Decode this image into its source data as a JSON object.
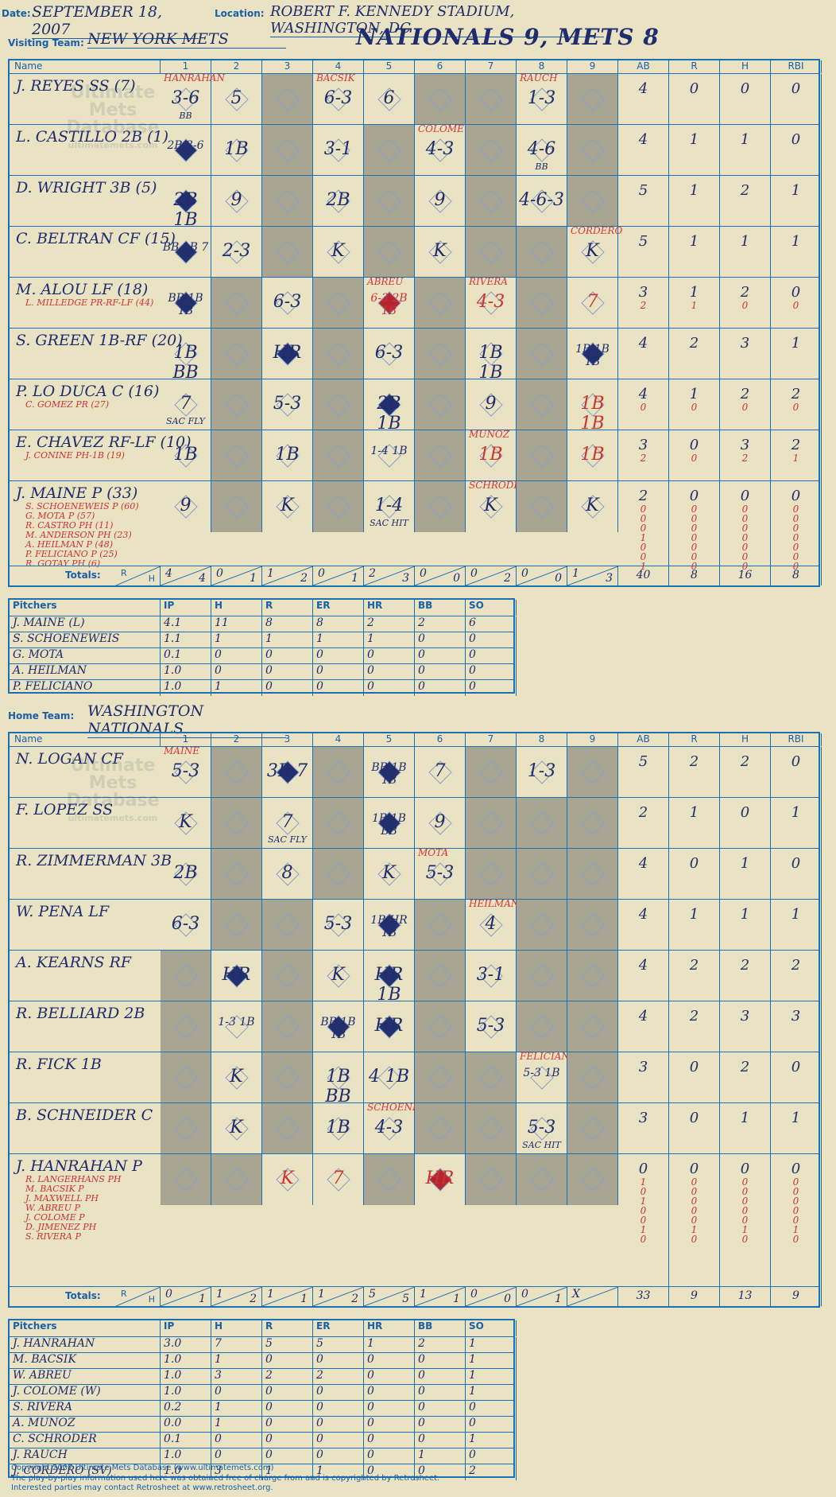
{
  "header": {
    "date_label": "Date:",
    "date": "SEPTEMBER 18, 2007",
    "location_label": "Location:",
    "location": "ROBERT F. KENNEDY STADIUM, WASHINGTON, DC",
    "visiting_label": "Visiting Team:",
    "visiting_team": "NEW YORK METS",
    "home_label": "Home Team:",
    "home_team": "WASHINGTON NATIONALS",
    "headline": "NATIONALS 9, METS 8",
    "watermark_lines": [
      "Ultimate",
      "Mets",
      "Database",
      "ultimatemets.com"
    ]
  },
  "columns": {
    "name": "Name",
    "innings": [
      "1",
      "2",
      "3",
      "4",
      "5",
      "6",
      "7",
      "8",
      "9"
    ],
    "stats": [
      "AB",
      "R",
      "H",
      "RBI"
    ],
    "totals_label": "Totals:",
    "r_label": "R",
    "h_label": "H"
  },
  "visitor": {
    "rows": [
      {
        "name": "J. REYES SS (7)",
        "subs": [],
        "ab": [
          "4"
        ],
        "r": [
          "0"
        ],
        "h": [
          "0"
        ],
        "rbi": [
          "0"
        ],
        "cells": [
          {
            "i": 1,
            "t": "3-6",
            "sub": "BB",
            "pitcher": "HANRAHAN"
          },
          {
            "i": 2,
            "t": "5"
          },
          {
            "i": 4,
            "t": "6-3",
            "pitcher": "BACSIK"
          },
          {
            "i": 5,
            "t": "6"
          },
          {
            "i": 8,
            "t": "1-3",
            "pitcher": "RAUCH"
          }
        ]
      },
      {
        "name": "L. CASTILLO 2B (1)",
        "subs": [],
        "ab": [
          "4"
        ],
        "r": [
          "1"
        ],
        "h": [
          "1"
        ],
        "rbi": [
          "0"
        ],
        "cells": [
          {
            "i": 1,
            "t": "2B 3-6",
            "run": true
          },
          {
            "i": 2,
            "t": "1B"
          },
          {
            "i": 4,
            "t": "3-1"
          },
          {
            "i": 6,
            "t": "4-3",
            "pitcher": "COLOME"
          },
          {
            "i": 8,
            "t": "4-6",
            "sub": "BB"
          }
        ]
      },
      {
        "name": "D. WRIGHT 3B (5)",
        "subs": [],
        "ab": [
          "5"
        ],
        "r": [
          "1"
        ],
        "h": [
          "2"
        ],
        "rbi": [
          "1"
        ],
        "cells": [
          {
            "i": 1,
            "t": "2B 1B",
            "run": true
          },
          {
            "i": 2,
            "t": "9"
          },
          {
            "i": 4,
            "t": "2B"
          },
          {
            "i": 6,
            "t": "9"
          },
          {
            "i": 8,
            "t": "4-6-3"
          }
        ]
      },
      {
        "name": "C. BELTRAN CF (15)",
        "subs": [],
        "ab": [
          "5"
        ],
        "r": [
          "1"
        ],
        "h": [
          "1"
        ],
        "rbi": [
          "1"
        ],
        "cells": [
          {
            "i": 1,
            "t": "BB 1B 7",
            "run": true
          },
          {
            "i": 2,
            "t": "2-3"
          },
          {
            "i": 4,
            "t": "K"
          },
          {
            "i": 6,
            "t": "K"
          },
          {
            "i": 9,
            "t": "K",
            "pitcher": "CORDERO"
          }
        ]
      },
      {
        "name": "M. ALOU LF (18)",
        "subs": [
          "L. MILLEDGE PR-RF-LF (44)"
        ],
        "ab": [
          "3",
          "2"
        ],
        "r": [
          "1",
          "1"
        ],
        "h": [
          "2",
          "0"
        ],
        "rbi": [
          "0",
          "0"
        ],
        "cells": [
          {
            "i": 1,
            "t": "BB 1B 1B",
            "run": true
          },
          {
            "i": 3,
            "t": "6-3"
          },
          {
            "i": 5,
            "t": "6-3 2B 1B",
            "run": true,
            "red": true,
            "pitcher": "ABREU"
          },
          {
            "i": 7,
            "t": "4-3",
            "red": true,
            "pitcher": "RIVERA"
          },
          {
            "i": 9,
            "t": "7",
            "red": true
          }
        ]
      },
      {
        "name": "S. GREEN 1B-RF (20)",
        "subs": [],
        "ab": [
          "4"
        ],
        "r": [
          "2"
        ],
        "h": [
          "3"
        ],
        "rbi": [
          "1"
        ],
        "cells": [
          {
            "i": 1,
            "t": "1B BB"
          },
          {
            "i": 3,
            "t": "HR",
            "run": true
          },
          {
            "i": 5,
            "t": "6-3"
          },
          {
            "i": 7,
            "t": "1B 1B"
          },
          {
            "i": 9,
            "t": "1B 1B 1B",
            "run": true
          }
        ]
      },
      {
        "name": "P. LO DUCA C (16)",
        "subs": [
          "C. GOMEZ PR (27)"
        ],
        "ab": [
          "4",
          "0"
        ],
        "r": [
          "1",
          "0"
        ],
        "h": [
          "2",
          "0"
        ],
        "rbi": [
          "2",
          "0"
        ],
        "cells": [
          {
            "i": 1,
            "t": "7",
            "sub": "SAC FLY"
          },
          {
            "i": 3,
            "t": "5-3"
          },
          {
            "i": 5,
            "t": "2B 1B",
            "run": true
          },
          {
            "i": 7,
            "t": "9"
          },
          {
            "i": 9,
            "t": "1B 1B",
            "red": true
          }
        ]
      },
      {
        "name": "E. CHAVEZ RF-LF (10)",
        "subs": [
          "J. CONINE PH-1B (19)"
        ],
        "ab": [
          "3",
          "2"
        ],
        "r": [
          "0",
          "0"
        ],
        "h": [
          "3",
          "2"
        ],
        "rbi": [
          "2",
          "1"
        ],
        "cells": [
          {
            "i": 1,
            "t": "1B"
          },
          {
            "i": 3,
            "t": "1B"
          },
          {
            "i": 5,
            "t": "1-4 1B"
          },
          {
            "i": 7,
            "t": "1B",
            "red": true,
            "pitcher": "MUNOZ"
          },
          {
            "i": 9,
            "t": "1B",
            "red": true
          }
        ]
      },
      {
        "name": "J. MAINE P (33)",
        "subs": [
          "S. SCHOENEWEIS P (60)",
          "G. MOTA P (57)",
          "R. CASTRO PH (11)",
          "M. ANDERSON PH (23)",
          "A. HEILMAN P (48)",
          "P. FELICIANO P (25)",
          "R. GOTAY PH (6)"
        ],
        "ab": [
          "2",
          "0",
          "0",
          "0",
          "1",
          "0",
          "0",
          "1"
        ],
        "r": [
          "0",
          "0",
          "0",
          "0",
          "0",
          "0",
          "0",
          "0"
        ],
        "h": [
          "0",
          "0",
          "0",
          "0",
          "0",
          "0",
          "0",
          "0"
        ],
        "rbi": [
          "0",
          "0",
          "0",
          "0",
          "0",
          "0",
          "0",
          "0"
        ],
        "cells": [
          {
            "i": 1,
            "t": "9"
          },
          {
            "i": 3,
            "t": "K"
          },
          {
            "i": 5,
            "t": "1-4",
            "sub": "SAC HIT"
          },
          {
            "i": 7,
            "t": "K",
            "pitcher": "SCHRODER"
          },
          {
            "i": 9,
            "t": "K"
          }
        ]
      }
    ],
    "innings_totals": [
      [
        "4",
        "4"
      ],
      [
        "0",
        "1"
      ],
      [
        "1",
        "2"
      ],
      [
        "0",
        "1"
      ],
      [
        "2",
        "3"
      ],
      [
        "0",
        "0"
      ],
      [
        "0",
        "2"
      ],
      [
        "0",
        "0"
      ],
      [
        "1",
        "3"
      ]
    ],
    "totals": [
      "40",
      "8",
      "16",
      "8"
    ]
  },
  "visitor_pitching": {
    "header": [
      "Pitchers",
      "IP",
      "H",
      "R",
      "ER",
      "HR",
      "BB",
      "SO"
    ],
    "rows": [
      [
        "J. MAINE (L)",
        "4.1",
        "11",
        "8",
        "8",
        "2",
        "2",
        "6"
      ],
      [
        "S. SCHOENEWEIS",
        "1.1",
        "1",
        "1",
        "1",
        "1",
        "0",
        "0"
      ],
      [
        "G. MOTA",
        "0.1",
        "0",
        "0",
        "0",
        "0",
        "0",
        "0"
      ],
      [
        "A. HEILMAN",
        "1.0",
        "0",
        "0",
        "0",
        "0",
        "0",
        "0"
      ],
      [
        "P. FELICIANO",
        "1.0",
        "1",
        "0",
        "0",
        "0",
        "0",
        "0"
      ]
    ]
  },
  "home": {
    "rows": [
      {
        "name": "N. LOGAN CF",
        "subs": [],
        "ab": [
          "5"
        ],
        "r": [
          "2"
        ],
        "h": [
          "2"
        ],
        "rbi": [
          "0"
        ],
        "cells": [
          {
            "i": 1,
            "t": "5-3",
            "pitcher": "MAINE"
          },
          {
            "i": 3,
            "t": "3B 7",
            "run": true
          },
          {
            "i": 5,
            "t": "BB 1B 1B",
            "run": true
          },
          {
            "i": 6,
            "t": "7"
          },
          {
            "i": 8,
            "t": "1-3"
          }
        ]
      },
      {
        "name": "F. LOPEZ SS",
        "subs": [],
        "ab": [
          "2"
        ],
        "r": [
          "1"
        ],
        "h": [
          "0"
        ],
        "rbi": [
          "1"
        ],
        "cells": [
          {
            "i": 1,
            "t": "K"
          },
          {
            "i": 3,
            "t": "7",
            "sub": "SAC FLY"
          },
          {
            "i": 5,
            "t": "1B 1B BB",
            "run": true
          },
          {
            "i": 6,
            "t": "9"
          }
        ]
      },
      {
        "name": "R. ZIMMERMAN 3B",
        "subs": [],
        "ab": [
          "4"
        ],
        "r": [
          "0"
        ],
        "h": [
          "1"
        ],
        "rbi": [
          "0"
        ],
        "cells": [
          {
            "i": 1,
            "t": "2B"
          },
          {
            "i": 3,
            "t": "8"
          },
          {
            "i": 5,
            "t": "K"
          },
          {
            "i": 6,
            "t": "5-3",
            "pitcher": "MOTA"
          }
        ]
      },
      {
        "name": "W. PENA LF",
        "subs": [],
        "ab": [
          "4"
        ],
        "r": [
          "1"
        ],
        "h": [
          "1"
        ],
        "rbi": [
          "1"
        ],
        "cells": [
          {
            "i": 1,
            "t": "6-3"
          },
          {
            "i": 4,
            "t": "5-3"
          },
          {
            "i": 5,
            "t": "1B HR 1B",
            "run": true
          },
          {
            "i": 7,
            "t": "4",
            "pitcher": "HEILMAN"
          }
        ]
      },
      {
        "name": "A. KEARNS RF",
        "subs": [],
        "ab": [
          "4"
        ],
        "r": [
          "2"
        ],
        "h": [
          "2"
        ],
        "rbi": [
          "2"
        ],
        "cells": [
          {
            "i": 2,
            "t": "HR",
            "run": true
          },
          {
            "i": 4,
            "t": "K"
          },
          {
            "i": 5,
            "t": "HR 1B",
            "run": true
          },
          {
            "i": 7,
            "t": "3-1"
          }
        ]
      },
      {
        "name": "R. BELLIARD 2B",
        "subs": [],
        "ab": [
          "4"
        ],
        "r": [
          "2"
        ],
        "h": [
          "3"
        ],
        "rbi": [
          "3"
        ],
        "cells": [
          {
            "i": 2,
            "t": "1-3 1B"
          },
          {
            "i": 4,
            "t": "BB 1B 1B",
            "run": true
          },
          {
            "i": 5,
            "t": "HR",
            "run": true
          },
          {
            "i": 7,
            "t": "5-3"
          }
        ]
      },
      {
        "name": "R. FICK 1B",
        "subs": [],
        "ab": [
          "3"
        ],
        "r": [
          "0"
        ],
        "h": [
          "2"
        ],
        "rbi": [
          "0"
        ],
        "cells": [
          {
            "i": 2,
            "t": "K"
          },
          {
            "i": 4,
            "t": "1B BB"
          },
          {
            "i": 5,
            "t": "4 1B"
          },
          {
            "i": 8,
            "t": "5-3 1B",
            "pitcher": "FELICIANO"
          }
        ]
      },
      {
        "name": "B. SCHNEIDER C",
        "subs": [],
        "ab": [
          "3"
        ],
        "r": [
          "0"
        ],
        "h": [
          "1"
        ],
        "rbi": [
          "1"
        ],
        "cells": [
          {
            "i": 2,
            "t": "K"
          },
          {
            "i": 4,
            "t": "1B"
          },
          {
            "i": 5,
            "t": "4-3",
            "pitcher": "SCHOENEWEIS"
          },
          {
            "i": 8,
            "t": "5-3",
            "sub": "SAC HIT"
          }
        ]
      },
      {
        "name": "J. HANRAHAN P",
        "subs": [
          "R. LANGERHANS PH",
          "M. BACSIK P",
          "J. MAXWELL PH",
          "W. ABREU P",
          "J. COLOME P",
          "D. JIMENEZ PH",
          "S. RIVERA P"
        ],
        "ab": [
          "0",
          "1",
          "0",
          "1",
          "0",
          "0",
          "1",
          "0"
        ],
        "r": [
          "0",
          "0",
          "0",
          "0",
          "0",
          "0",
          "1",
          "0"
        ],
        "h": [
          "0",
          "0",
          "0",
          "0",
          "0",
          "0",
          "1",
          "0"
        ],
        "rbi": [
          "0",
          "0",
          "0",
          "0",
          "0",
          "0",
          "1",
          "0"
        ],
        "cells": [
          {
            "i": 3,
            "t": "K",
            "red": true
          },
          {
            "i": 4,
            "t": "7",
            "red": true
          },
          {
            "i": 6,
            "t": "HR",
            "run": true,
            "red": true
          }
        ]
      }
    ],
    "innings_totals": [
      [
        "0",
        "1"
      ],
      [
        "1",
        "2"
      ],
      [
        "1",
        "1"
      ],
      [
        "1",
        "2"
      ],
      [
        "5",
        "5"
      ],
      [
        "1",
        "1"
      ],
      [
        "0",
        "0"
      ],
      [
        "0",
        "1"
      ],
      [
        "X",
        ""
      ]
    ],
    "totals": [
      "33",
      "9",
      "13",
      "9"
    ]
  },
  "home_pitching": {
    "header": [
      "Pitchers",
      "IP",
      "H",
      "R",
      "ER",
      "HR",
      "BB",
      "SO"
    ],
    "rows": [
      [
        "J. HANRAHAN",
        "3.0",
        "7",
        "5",
        "5",
        "1",
        "2",
        "1"
      ],
      [
        "M. BACSIK",
        "1.0",
        "1",
        "0",
        "0",
        "0",
        "0",
        "1"
      ],
      [
        "W. ABREU",
        "1.0",
        "3",
        "2",
        "2",
        "0",
        "0",
        "1"
      ],
      [
        "J. COLOME (W)",
        "1.0",
        "0",
        "0",
        "0",
        "0",
        "0",
        "1"
      ],
      [
        "S. RIVERA",
        "0.2",
        "1",
        "0",
        "0",
        "0",
        "0",
        "0"
      ],
      [
        "A. MUNOZ",
        "0.0",
        "1",
        "0",
        "0",
        "0",
        "0",
        "0"
      ],
      [
        "C. SCHRODER",
        "0.1",
        "0",
        "0",
        "0",
        "0",
        "0",
        "1"
      ],
      [
        "J. RAUCH",
        "1.0",
        "0",
        "0",
        "0",
        "0",
        "1",
        "0"
      ],
      [
        "J. CORDERO (SV)",
        "1.0",
        "3",
        "1",
        "1",
        "0",
        "0",
        "2"
      ]
    ]
  },
  "footer": {
    "line1": "Copyright 2007 Ultimate Mets Database (www.ultimatemets.com)",
    "line2": "The play-by-play information used here was obtained free of charge from and is copyrighted by Retrosheet.",
    "line3": "Interested parties may contact Retrosheet at www.retrosheet.org."
  },
  "colors": {
    "ink": "#1f2c6e",
    "grid": "#1b6fb5",
    "paper": "#e9e3c3",
    "shade": "#a8a593",
    "red": "#c33",
    "run_diamond": "#23306e"
  }
}
